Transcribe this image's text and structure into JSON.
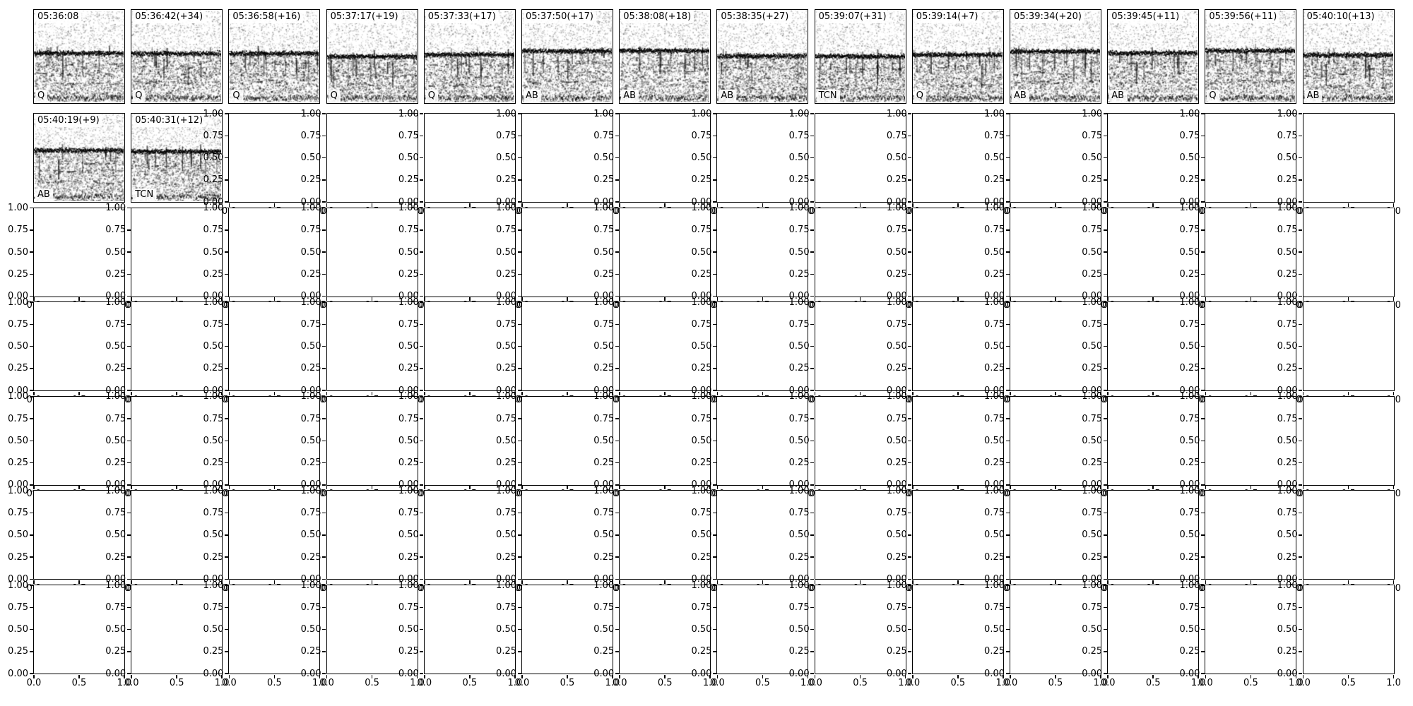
{
  "figure": {
    "background": "#ffffff",
    "foreground": "#000000",
    "description": "Grid of audio spectrogram thumbnails with detection timestamps and classifier labels; unused subplot axes are empty with 0-1 tick ranges"
  },
  "chart_data": {
    "type": "heatmap",
    "subtype": "spectrogram-thumbnail-grid",
    "title": "",
    "grid": {
      "rows": 7,
      "cols": 14,
      "filled_panels": 16
    },
    "classifier_labels_seen": [
      "Q",
      "AB",
      "TCN"
    ],
    "panels": [
      {
        "row": 1,
        "col": 1,
        "timestamp": "05:36:08",
        "label": "Q"
      },
      {
        "row": 1,
        "col": 2,
        "timestamp": "05:36:42(+34)",
        "label": "Q"
      },
      {
        "row": 1,
        "col": 3,
        "timestamp": "05:36:58(+16)",
        "label": "Q"
      },
      {
        "row": 1,
        "col": 4,
        "timestamp": "05:37:17(+19)",
        "label": "Q"
      },
      {
        "row": 1,
        "col": 5,
        "timestamp": "05:37:33(+17)",
        "label": "Q"
      },
      {
        "row": 1,
        "col": 6,
        "timestamp": "05:37:50(+17)",
        "label": "AB"
      },
      {
        "row": 1,
        "col": 7,
        "timestamp": "05:38:08(+18)",
        "label": "AB"
      },
      {
        "row": 1,
        "col": 8,
        "timestamp": "05:38:35(+27)",
        "label": "AB"
      },
      {
        "row": 1,
        "col": 9,
        "timestamp": "05:39:07(+31)",
        "label": "TCN"
      },
      {
        "row": 1,
        "col": 10,
        "timestamp": "05:39:14(+7)",
        "label": "Q"
      },
      {
        "row": 1,
        "col": 11,
        "timestamp": "05:39:34(+20)",
        "label": "AB"
      },
      {
        "row": 1,
        "col": 12,
        "timestamp": "05:39:45(+11)",
        "label": "AB"
      },
      {
        "row": 1,
        "col": 13,
        "timestamp": "05:39:56(+11)",
        "label": "Q"
      },
      {
        "row": 1,
        "col": 14,
        "timestamp": "05:40:10(+13)",
        "label": "AB"
      },
      {
        "row": 2,
        "col": 1,
        "timestamp": "05:40:19(+9)",
        "label": "AB"
      },
      {
        "row": 2,
        "col": 2,
        "timestamp": "05:40:31(+12)",
        "label": "TCN"
      }
    ],
    "empty_axes": {
      "xlim": [
        0,
        1
      ],
      "ylim": [
        0,
        1
      ],
      "yticks": [
        1.0,
        0.75,
        0.5,
        0.25,
        0.0
      ],
      "xticks": [
        0.0,
        0.5,
        1.0
      ],
      "yticklabels": [
        "1.00",
        "0.75",
        "0.50",
        "0.25",
        "0.00"
      ],
      "xticklabels": [
        "0.0",
        "0.5",
        "1.0"
      ],
      "grid": "off",
      "legend": "none"
    }
  }
}
